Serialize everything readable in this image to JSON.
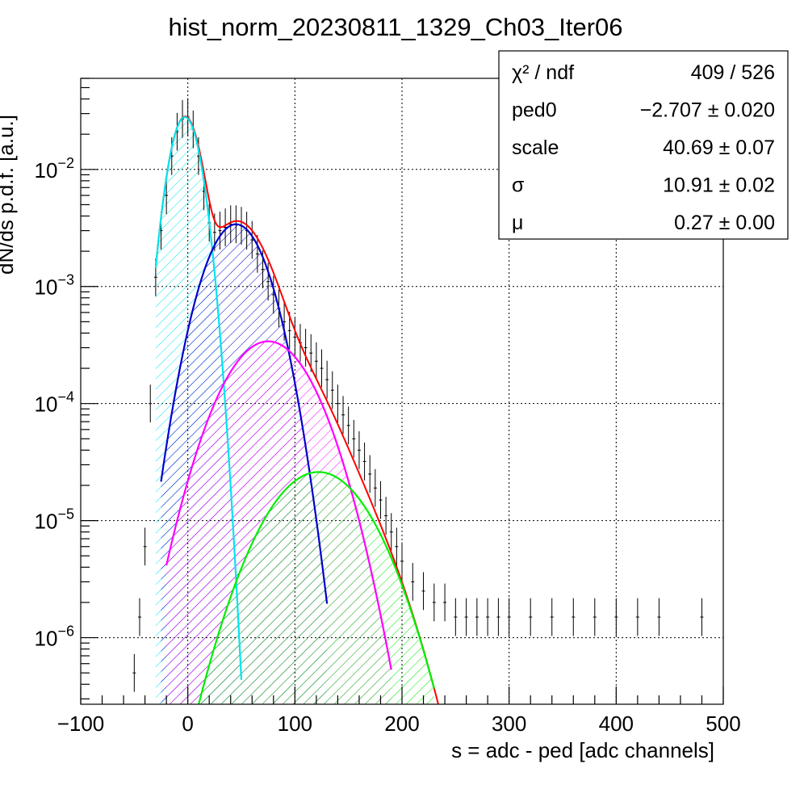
{
  "chart_data": {
    "type": "line",
    "title": "hist_norm_20230811_1329_Ch03_Iter06",
    "xlabel": "s = adc - ped [adc channels]",
    "ylabel": "dN/ds p.d.f. [a.u.]",
    "xlim": [
      -100,
      500
    ],
    "ylim": [
      2.7e-07,
      0.06
    ],
    "yscale": "log",
    "grid": true,
    "x_ticks": [
      "−100",
      "0",
      "100",
      "200",
      "300",
      "400",
      "500"
    ],
    "x_tick_values": [
      -100,
      0,
      100,
      200,
      300,
      400,
      500
    ],
    "y_tick_values": [
      1e-06,
      1e-05,
      0.0001,
      0.001,
      0.01
    ],
    "y_ticks": [
      {
        "base": "10",
        "exp": "−6"
      },
      {
        "base": "10",
        "exp": "−5"
      },
      {
        "base": "10",
        "exp": "−4"
      },
      {
        "base": "10",
        "exp": "−3"
      },
      {
        "base": "10",
        "exp": "−2"
      }
    ],
    "stats_box": {
      "placement": "top-right",
      "rows": [
        {
          "label": "χ² / ndf",
          "value": "409 / 526"
        },
        {
          "label": "ped0",
          "value": "−2.707 ± 0.020"
        },
        {
          "label": "scale",
          "value": "40.69 ± 0.07"
        },
        {
          "label": "σ",
          "value": "10.91 ± 0.02"
        },
        {
          "label": "μ",
          "value": "0.27 ± 0.00"
        }
      ]
    },
    "series": [
      {
        "kind": "histogram",
        "color": "#000000",
        "x": [
          -50,
          -45,
          -40,
          -35,
          -30,
          -25,
          -20,
          -15,
          -10,
          -5,
          0,
          5,
          10,
          15,
          20,
          25,
          30,
          35,
          40,
          45,
          50,
          55,
          60,
          65,
          70,
          75,
          80,
          85,
          90,
          95,
          100,
          105,
          110,
          115,
          120,
          125,
          130,
          135,
          140,
          145,
          150,
          155,
          160,
          165,
          170,
          175,
          180,
          185,
          190,
          195,
          200,
          210,
          220,
          230,
          240,
          250,
          260,
          270,
          280,
          290,
          300,
          320,
          340,
          360,
          380,
          400,
          420,
          440,
          480
        ],
        "y": [
          5e-07,
          1.5e-06,
          6e-06,
          0.0001,
          0.0012,
          0.003,
          0.006,
          0.013,
          0.021,
          0.027,
          0.028,
          0.022,
          0.013,
          0.0065,
          0.0035,
          0.0029,
          0.003,
          0.0032,
          0.0034,
          0.0034,
          0.0033,
          0.003,
          0.0025,
          0.0019,
          0.0014,
          0.0011,
          0.00085,
          0.00065,
          0.0005,
          0.00042,
          0.00037,
          0.00033,
          0.0003,
          0.00027,
          0.00023,
          0.0002,
          0.00016,
          0.00013,
          0.0001,
          8e-05,
          6.5e-05,
          5e-05,
          4e-05,
          3.2e-05,
          2.5e-05,
          1.9e-05,
          1.5e-05,
          1.1e-05,
          8e-06,
          6e-06,
          4.5e-06,
          3e-06,
          2.5e-06,
          2e-06,
          2e-06,
          1.5e-06,
          1.5e-06,
          1.5e-06,
          1.5e-06,
          1.5e-06,
          1.5e-06,
          1.5e-06,
          1.5e-06,
          1.5e-06,
          1.5e-06,
          1.5e-06,
          1.5e-06,
          1.5e-06,
          1.5e-06
        ]
      },
      {
        "kind": "fit",
        "color": "#ff0000",
        "hatch": false,
        "x_range": [
          -30,
          250
        ],
        "components": [
          {
            "A": 0.028,
            "mu": -2.7,
            "sigma": 11.2
          },
          {
            "A": 0.0034,
            "mu": 45,
            "sigma": 22
          },
          {
            "A": 0.00034,
            "mu": 75,
            "sigma": 32
          },
          {
            "A": 2.6e-05,
            "mu": 122,
            "sigma": 37
          }
        ]
      },
      {
        "kind": "component",
        "color": "#00e5ee",
        "hatch": true,
        "x_range": [
          -30,
          50
        ],
        "A": 0.028,
        "mu": -2.7,
        "sigma": 11.2
      },
      {
        "kind": "component",
        "color": "#0000cd",
        "hatch": true,
        "x_range": [
          -25,
          130
        ],
        "A": 0.0034,
        "mu": 45,
        "sigma": 22
      },
      {
        "kind": "component",
        "color": "#ff00ff",
        "hatch": true,
        "x_range": [
          -20,
          190
        ],
        "A": 0.00034,
        "mu": 75,
        "sigma": 32
      },
      {
        "kind": "component",
        "color": "#00ee00",
        "hatch": true,
        "x_range": [
          10,
          230
        ],
        "A": 2.6e-05,
        "mu": 122,
        "sigma": 37
      }
    ]
  }
}
